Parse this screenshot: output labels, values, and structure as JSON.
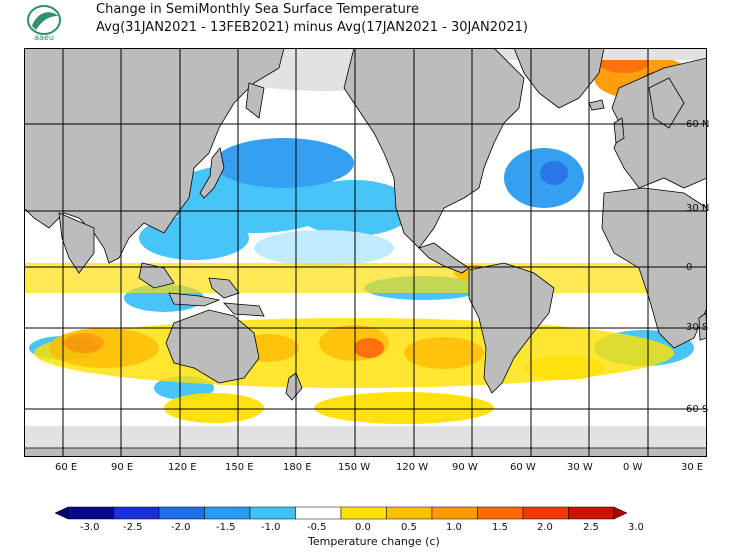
{
  "header": {
    "title_line1": "Change in SemiMonthly Sea Surface Temperature",
    "title_line2": "Avg(31JAN2021 - 13FEB2021) minus Avg(17JAN2021 - 30JAN2021)"
  },
  "logo": {
    "text": "aaeu",
    "color": "#2f8f6f"
  },
  "map": {
    "lon_labels": [
      "60 E",
      "90 E",
      "120 E",
      "150 E",
      "180 E",
      "150 W",
      "120 W",
      "90 W",
      "60 W",
      "30 W",
      "0 W",
      "30 E"
    ],
    "lat_labels": [
      "60 N",
      "30 N",
      "0",
      "30 S",
      "60 S"
    ],
    "land_color": "#bcbcbc",
    "sea_ice_color": "#e2e2e2"
  },
  "colorbar": {
    "ticks": [
      "-3.0",
      "-2.5",
      "-2.0",
      "-1.5",
      "-1.0",
      "-0.5",
      "0.0",
      "0.5",
      "1.0",
      "1.5",
      "2.0",
      "2.5",
      "3.0"
    ],
    "colors": [
      "#08088c",
      "#1a2fd6",
      "#1f6fe6",
      "#2b9af2",
      "#3fc2f8",
      "#ffffff",
      "#ffe000",
      "#ffc000",
      "#ff9a00",
      "#ff6a00",
      "#ee3a00",
      "#c81400"
    ],
    "underflow_color": "#06066e",
    "overflow_color": "#b00000",
    "label": "Temperature change  (c)"
  }
}
